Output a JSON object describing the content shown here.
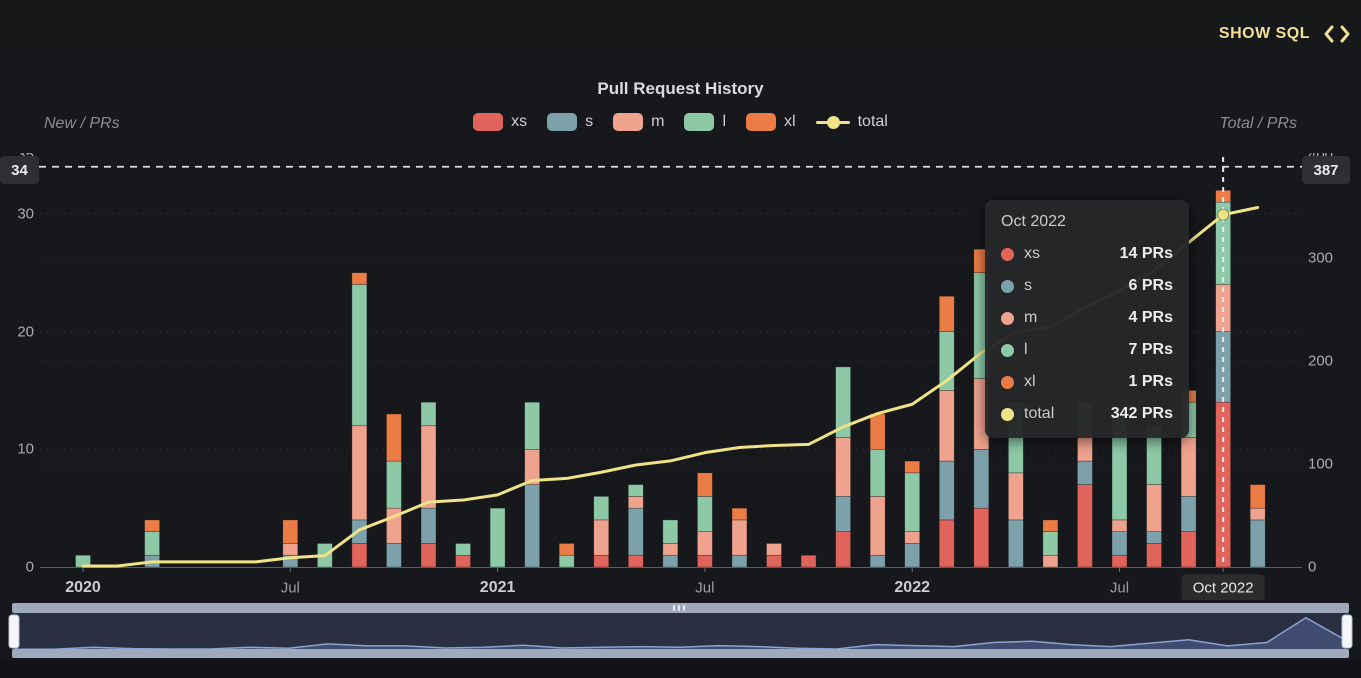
{
  "header": {
    "show_sql": "SHOW SQL"
  },
  "chart": {
    "title": "Pull Request History",
    "left_axis_name": "New / PRs",
    "right_axis_name": "Total / PRs"
  },
  "legend": [
    {
      "id": "xs",
      "label": "xs",
      "color": "#E0635C",
      "marker": "box"
    },
    {
      "id": "s",
      "label": "s",
      "color": "#7DA1AB",
      "marker": "box"
    },
    {
      "id": "m",
      "label": "m",
      "color": "#EFA28E",
      "marker": "box"
    },
    {
      "id": "l",
      "label": "l",
      "color": "#8DC9A7",
      "marker": "box"
    },
    {
      "id": "xl",
      "label": "xl",
      "color": "#EC7C46",
      "marker": "box"
    },
    {
      "id": "total",
      "label": "total",
      "color": "#EFE287",
      "marker": "line-dot"
    }
  ],
  "axes": {
    "left_ticks": [
      {
        "label": "0",
        "value": 0
      },
      {
        "label": "10",
        "value": 10
      },
      {
        "label": "20",
        "value": 20
      },
      {
        "label": "30",
        "value": 30
      },
      {
        "label": "35",
        "value": 35
      }
    ],
    "right_ticks": [
      {
        "label": "0",
        "value": 0
      },
      {
        "label": "100",
        "value": 100
      },
      {
        "label": "200",
        "value": 200
      },
      {
        "label": "300",
        "value": 300
      },
      {
        "label": "400",
        "value": 400
      }
    ],
    "x_labels": [
      {
        "index": 0,
        "text": "2020",
        "kind": "year"
      },
      {
        "index": 6,
        "text": "Jul",
        "kind": "month"
      },
      {
        "index": 12,
        "text": "2021",
        "kind": "year"
      },
      {
        "index": 18,
        "text": "Jul",
        "kind": "month"
      },
      {
        "index": 24,
        "text": "2022",
        "kind": "year"
      },
      {
        "index": 30,
        "text": "Jul",
        "kind": "month"
      },
      {
        "index": 33,
        "text": "Oct 2022",
        "kind": "badge"
      }
    ]
  },
  "threshold": {
    "left_label": "34",
    "right_label": "387",
    "left_value": 34,
    "right_value": 387
  },
  "tooltip": {
    "title": "Oct 2022",
    "rows": [
      {
        "series": "xs",
        "label": "xs",
        "value": "14 PRs",
        "color": "#E0635C"
      },
      {
        "series": "s",
        "label": "s",
        "value": "6 PRs",
        "color": "#7DA1AB"
      },
      {
        "series": "m",
        "label": "m",
        "value": "4 PRs",
        "color": "#EFA28E"
      },
      {
        "series": "l",
        "label": "l",
        "value": "7 PRs",
        "color": "#8DC9A7"
      },
      {
        "series": "xl",
        "label": "xl",
        "value": "1 PRs",
        "color": "#EC7C46"
      },
      {
        "series": "total",
        "label": "total",
        "value": "342 PRs",
        "color": "#EFE287"
      }
    ]
  },
  "chart_data": {
    "type": "bar",
    "stacked": true,
    "title": "Pull Request History",
    "xlabel": "",
    "ylabel_left": "New / PRs",
    "ylabel_right": "Total / PRs",
    "ylim_left": [
      0,
      35
    ],
    "ylim_right": [
      0,
      400
    ],
    "grid": "faint-dashed",
    "legend_position": "top",
    "highlight_index": 33,
    "threshold": {
      "new_axis": 34,
      "total_axis": 387
    },
    "categories": [
      "Jan 2020",
      "Feb 2020",
      "Mar 2020",
      "Apr 2020",
      "May 2020",
      "Jun 2020",
      "Jul 2020",
      "Aug 2020",
      "Sep 2020",
      "Oct 2020",
      "Nov 2020",
      "Dec 2020",
      "Jan 2021",
      "Feb 2021",
      "Mar 2021",
      "Apr 2021",
      "May 2021",
      "Jun 2021",
      "Jul 2021",
      "Aug 2021",
      "Sep 2021",
      "Oct 2021",
      "Nov 2021",
      "Dec 2021",
      "Jan 2022",
      "Feb 2022",
      "Mar 2022",
      "Apr 2022",
      "May 2022",
      "Jun 2022",
      "Jul 2022",
      "Aug 2022",
      "Sep 2022",
      "Oct 2022",
      "Nov 2022"
    ],
    "series": [
      {
        "name": "xs",
        "color": "#E0635C",
        "values": [
          0,
          0,
          0,
          0,
          0,
          0,
          0,
          0,
          2,
          0,
          2,
          1,
          0,
          0,
          0,
          1,
          1,
          0,
          1,
          0,
          1,
          1,
          3,
          0,
          0,
          4,
          5,
          0,
          0,
          7,
          1,
          2,
          3,
          14,
          0
        ]
      },
      {
        "name": "s",
        "color": "#7DA1AB",
        "values": [
          0,
          0,
          1,
          0,
          0,
          0,
          1,
          0,
          2,
          2,
          3,
          0,
          0,
          7,
          0,
          0,
          4,
          1,
          0,
          1,
          0,
          0,
          3,
          1,
          2,
          5,
          5,
          4,
          0,
          2,
          2,
          1,
          3,
          6,
          4
        ]
      },
      {
        "name": "m",
        "color": "#EFA28E",
        "values": [
          0,
          0,
          0,
          0,
          0,
          0,
          1,
          0,
          8,
          3,
          7,
          0,
          0,
          3,
          0,
          3,
          1,
          1,
          2,
          3,
          1,
          0,
          5,
          5,
          1,
          6,
          6,
          4,
          1,
          3,
          1,
          4,
          5,
          4,
          1
        ]
      },
      {
        "name": "l",
        "color": "#8DC9A7",
        "values": [
          1,
          0,
          2,
          0,
          0,
          0,
          0,
          2,
          12,
          4,
          2,
          1,
          5,
          4,
          1,
          2,
          1,
          2,
          3,
          0,
          0,
          0,
          6,
          4,
          5,
          5,
          9,
          6,
          2,
          2,
          9,
          5,
          3,
          7,
          0
        ]
      },
      {
        "name": "xl",
        "color": "#EC7C46",
        "values": [
          0,
          0,
          1,
          0,
          0,
          0,
          2,
          0,
          1,
          4,
          0,
          0,
          0,
          0,
          1,
          0,
          0,
          0,
          2,
          1,
          0,
          0,
          0,
          3,
          1,
          3,
          2,
          0,
          1,
          0,
          0,
          0,
          1,
          1,
          2
        ]
      }
    ],
    "line": {
      "name": "total",
      "axis": "right",
      "color": "#EFE287",
      "values": [
        1,
        1,
        5,
        5,
        5,
        5,
        9,
        11,
        36,
        49,
        63,
        65,
        70,
        84,
        86,
        92,
        99,
        103,
        111,
        116,
        118,
        119,
        136,
        149,
        158,
        181,
        208,
        228,
        233,
        252,
        268,
        288,
        315,
        342,
        349
      ]
    }
  },
  "minimap": {
    "values": [
      0.02,
      0.02,
      0.08,
      0.04,
      0.03,
      0.03,
      0.08,
      0.05,
      0.18,
      0.12,
      0.12,
      0.06,
      0.08,
      0.14,
      0.06,
      0.08,
      0.1,
      0.08,
      0.13,
      0.1,
      0.05,
      0.03,
      0.16,
      0.13,
      0.1,
      0.22,
      0.26,
      0.16,
      0.1,
      0.2,
      0.3,
      0.12,
      0.22,
      0.95,
      0.3
    ]
  },
  "colors": {
    "background": "#17181B",
    "accent_yellow": "#F3DF96",
    "tooltip_bg": "#262729",
    "badge_bg": "#2E2F32",
    "rail": "#9EA9BC",
    "navigator_bg": "#2A3041",
    "navigator_area": "#45547C",
    "navigator_line": "#8CA3D2"
  }
}
